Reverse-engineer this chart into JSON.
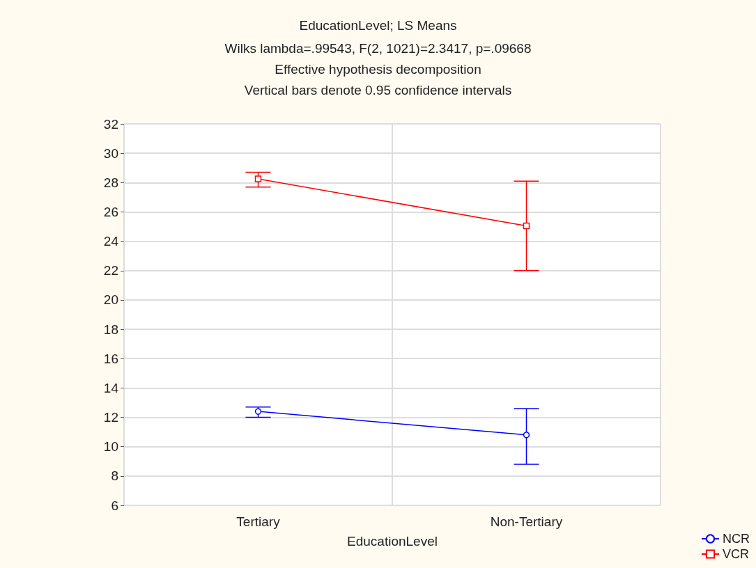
{
  "chart_data": {
    "type": "line",
    "title": "EducationLevel; LS Means",
    "subtitle": "Wilks lambda=.99543, F(2, 1021)=2.3417, p=.09668\nEffective hypothesis decomposition\nVertical bars denote 0.95 confidence intervals",
    "xlabel": "EducationLevel",
    "categories": [
      "Tertiary",
      "Non-Tertiary"
    ],
    "series": [
      {
        "name": "NCR",
        "color": "#0000ff",
        "marker": "circle",
        "values": [
          12.4,
          10.8
        ],
        "errors": [
          [
            12.0,
            12.7
          ],
          [
            8.8,
            12.6
          ]
        ]
      },
      {
        "name": "VCR",
        "color": "#ff0000",
        "marker": "square",
        "values": [
          28.25,
          25.05
        ],
        "errors": [
          [
            27.7,
            28.7
          ],
          [
            22.0,
            28.1
          ]
        ]
      }
    ],
    "ylim": [
      6,
      32
    ],
    "yticks": [
      6,
      8,
      10,
      12,
      14,
      16,
      18,
      20,
      22,
      24,
      26,
      28,
      30,
      32
    ],
    "grid": true,
    "legend": "bottom right",
    "line_style": "solid"
  }
}
